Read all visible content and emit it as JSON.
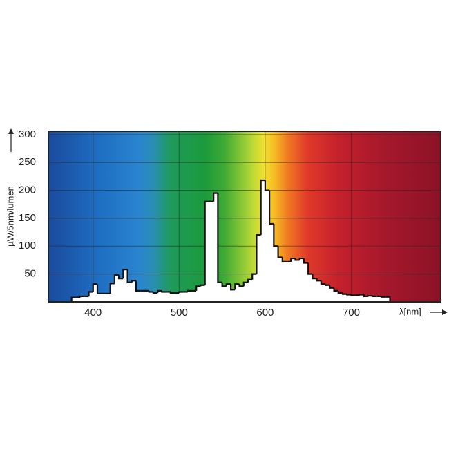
{
  "chart_data": {
    "type": "histogram",
    "y_label": "µW/5nm/lumen",
    "x_label": "λ[nm]",
    "bins": [
      375,
      380,
      385,
      390,
      395,
      400,
      405,
      410,
      415,
      420,
      425,
      430,
      435,
      440,
      445,
      450,
      455,
      460,
      465,
      470,
      475,
      480,
      485,
      490,
      495,
      500,
      505,
      510,
      515,
      520,
      525,
      530,
      535,
      540,
      545,
      550,
      555,
      560,
      565,
      570,
      575,
      580,
      585,
      590,
      595,
      600,
      605,
      610,
      615,
      620,
      625,
      630,
      635,
      640,
      645,
      650,
      655,
      660,
      665,
      670,
      675,
      680,
      685,
      690,
      695,
      700,
      705,
      710,
      715,
      720,
      725,
      730,
      735,
      740,
      745
    ],
    "values": [
      8,
      8,
      10,
      10,
      18,
      32,
      15,
      15,
      15,
      33,
      48,
      42,
      58,
      35,
      38,
      20,
      20,
      20,
      18,
      16,
      20,
      18,
      18,
      16,
      16,
      18,
      18,
      20,
      20,
      28,
      30,
      180,
      180,
      195,
      35,
      28,
      32,
      22,
      32,
      28,
      35,
      40,
      50,
      120,
      218,
      200,
      140,
      100,
      80,
      72,
      72,
      78,
      75,
      78,
      70,
      50,
      42,
      38,
      32,
      30,
      25,
      20,
      16,
      14,
      13,
      12,
      12,
      13,
      10,
      11,
      10,
      10,
      9,
      9
    ],
    "color": "#ffffff",
    "xlim": [
      348,
      804
    ],
    "ylim": [
      0,
      306
    ],
    "xticks": [
      400,
      500,
      600,
      700
    ],
    "yticks": [
      50,
      100,
      150,
      200,
      250,
      300
    ],
    "grid": true
  }
}
